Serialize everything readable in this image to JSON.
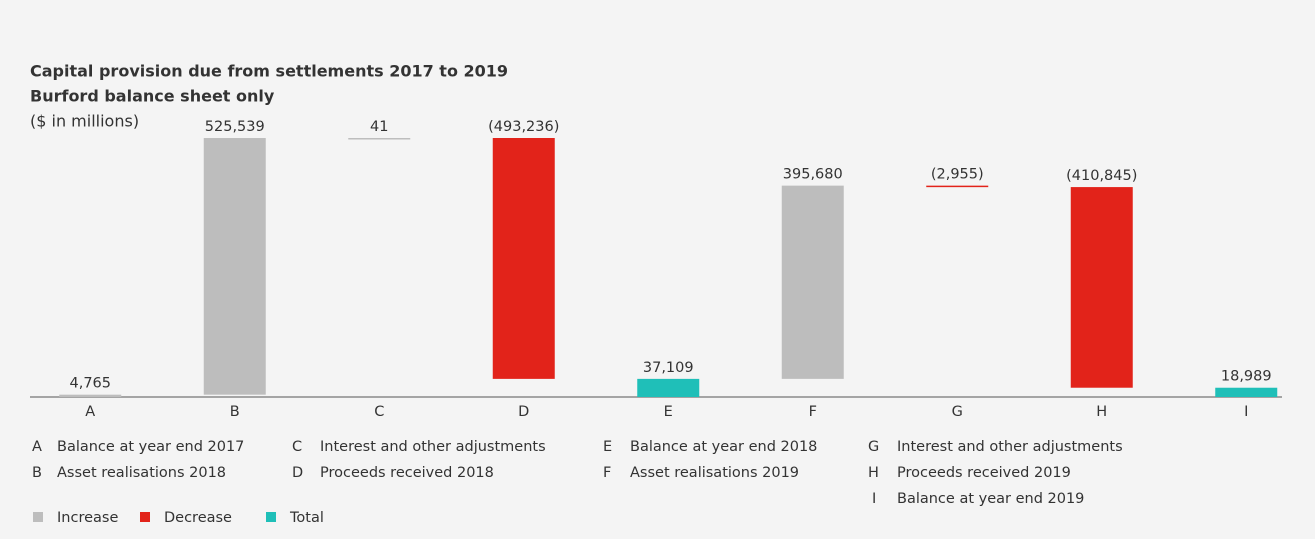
{
  "chart_data": {
    "type": "waterfall",
    "title": "Capital provision due from settlements 2017 to 2019",
    "subtitle": "Burford balance sheet only",
    "y_label": "($ in millions)",
    "categories": [
      "A",
      "B",
      "C",
      "D",
      "E",
      "F",
      "G",
      "H",
      "I"
    ],
    "descriptions": [
      "Balance at year end 2017",
      "Asset realisations 2018",
      "Interest and other adjustments",
      "Proceeds received 2018",
      "Balance at year end 2018",
      "Asset realisations 2019",
      "Interest and other adjustments",
      "Proceeds received 2019",
      "Balance at year end 2019"
    ],
    "series": [
      {
        "name": "Increase",
        "color": "#bdbdbd",
        "values": [
          4765,
          525539,
          41,
          null,
          null,
          395680,
          null,
          null,
          null
        ],
        "value_labels": [
          "4,765",
          "525,539",
          "41",
          null,
          null,
          "395,680",
          null,
          null,
          null
        ]
      },
      {
        "name": "Decrease",
        "color": "#e2231a",
        "values": [
          null,
          null,
          null,
          -493236,
          null,
          null,
          -2955,
          -410845,
          null
        ],
        "value_labels": [
          null,
          null,
          null,
          "(493,236)",
          null,
          null,
          "(2,955)",
          "(410,845)",
          null
        ]
      },
      {
        "name": "Total",
        "color": "#1fbfb8",
        "values": [
          null,
          null,
          null,
          null,
          37109,
          null,
          null,
          null,
          18989
        ],
        "value_labels": [
          null,
          null,
          null,
          null,
          "37,109",
          null,
          null,
          null,
          "18,989"
        ]
      }
    ]
  }
}
